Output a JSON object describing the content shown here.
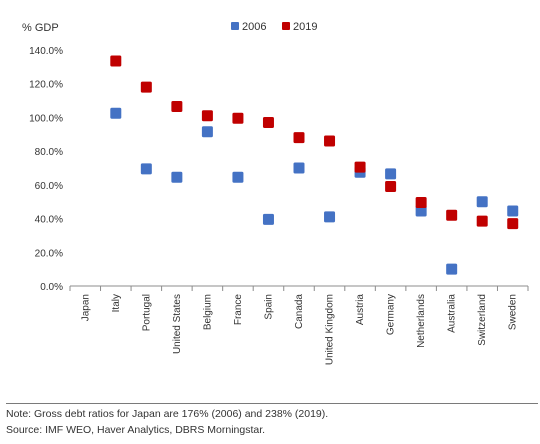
{
  "chart_data": {
    "type": "scatter",
    "unit_label": "% GDP",
    "categories": [
      "Japan",
      "Italy",
      "Portugal",
      "United States",
      "Belgium",
      "France",
      "Spain",
      "Canada",
      "United Kingdom",
      "Austria",
      "Germany",
      "Netherlands",
      "Australia",
      "Switzerland",
      "Sweden"
    ],
    "ylim": [
      0,
      140
    ],
    "yticks": [
      "0.0%",
      "20.0%",
      "40.0%",
      "60.0%",
      "80.0%",
      "100.0%",
      "120.0%",
      "140.0%"
    ],
    "grid": false,
    "legend_position": "top",
    "series": [
      {
        "name": "2006",
        "color": "#4472c4",
        "values": [
          null,
          102.5,
          69.5,
          64.5,
          91.5,
          64.5,
          39.5,
          70,
          41,
          67.5,
          66.5,
          44.5,
          10,
          50,
          44.5
        ]
      },
      {
        "name": "2019",
        "color": "#c00000",
        "values": [
          null,
          133.5,
          118,
          106.5,
          101,
          99.5,
          97,
          88,
          86,
          70.5,
          59,
          49.5,
          42,
          38.5,
          37
        ]
      }
    ]
  },
  "note": {
    "line1": "Note: Gross debt ratios for Japan are 176% (2006) and 238% (2019).",
    "line2": "Source: IMF WEO, Haver Analytics, DBRS Morningstar."
  }
}
